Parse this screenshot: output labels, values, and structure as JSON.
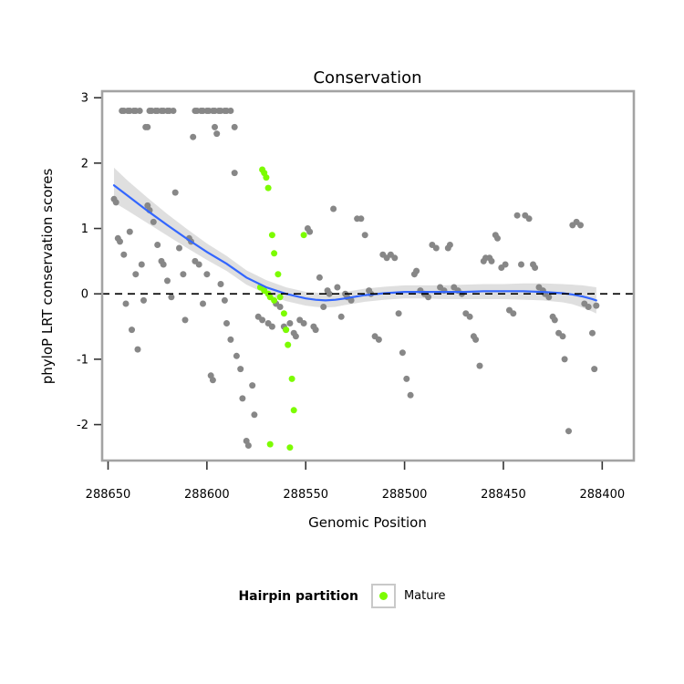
{
  "title": "Conservation",
  "x_axis": {
    "label": "Genomic Position"
  },
  "y_axis": {
    "label": "phyloP LRT conservation scores"
  },
  "legend": {
    "title": "Hairpin partition",
    "items": [
      {
        "label": "Mature",
        "color": "#7CFC00"
      }
    ]
  },
  "colors": {
    "points_other": "#878787",
    "points_mature": "#7CFC00",
    "smooth_line": "#3366FF",
    "ribbon": "#C9C9C9",
    "reference_line": "#000000",
    "panel_border": "#A3A3A3"
  },
  "chart_data": {
    "type": "scatter",
    "title": "Conservation",
    "xlabel": "Genomic Position",
    "ylabel": "phyloP LRT conservation scores",
    "x_axis_reversed": true,
    "x_ticks": [
      288650,
      288600,
      288550,
      288500,
      288450,
      288400
    ],
    "y_ticks": [
      3,
      2,
      1,
      0,
      -1,
      -2
    ],
    "xlim_display": [
      288653,
      288384
    ],
    "ylim": [
      -2.55,
      3.1
    ],
    "reference_line_y": 0,
    "grid": false,
    "legend_position": "bottom",
    "series": [
      {
        "name": "Other",
        "color": "#878787",
        "points": [
          [
            288643,
            2.8
          ],
          [
            288642,
            2.8
          ],
          [
            288640,
            2.8
          ],
          [
            288639,
            2.8
          ],
          [
            288637,
            2.8
          ],
          [
            288636,
            2.8
          ],
          [
            288634,
            2.8
          ],
          [
            288629,
            2.8
          ],
          [
            288628,
            2.8
          ],
          [
            288626,
            2.8
          ],
          [
            288625,
            2.8
          ],
          [
            288623,
            2.8
          ],
          [
            288622,
            2.8
          ],
          [
            288620,
            2.8
          ],
          [
            288619,
            2.8
          ],
          [
            288617,
            2.8
          ],
          [
            288606,
            2.8
          ],
          [
            288605,
            2.8
          ],
          [
            288603,
            2.8
          ],
          [
            288602,
            2.8
          ],
          [
            288600,
            2.8
          ],
          [
            288599,
            2.8
          ],
          [
            288597,
            2.8
          ],
          [
            288596,
            2.8
          ],
          [
            288594,
            2.8
          ],
          [
            288593,
            2.8
          ],
          [
            288591,
            2.8
          ],
          [
            288590,
            2.8
          ],
          [
            288588,
            2.8
          ],
          [
            288631,
            2.55
          ],
          [
            288630,
            2.55
          ],
          [
            288596,
            2.55
          ],
          [
            288586,
            2.55
          ],
          [
            288607,
            2.4
          ],
          [
            288595,
            2.45
          ],
          [
            288647,
            1.45
          ],
          [
            288646,
            1.4
          ],
          [
            288645,
            0.85
          ],
          [
            288644,
            0.8
          ],
          [
            288642,
            0.6
          ],
          [
            288641,
            -0.15
          ],
          [
            288639,
            0.95
          ],
          [
            288638,
            -0.55
          ],
          [
            288636,
            0.3
          ],
          [
            288635,
            -0.85
          ],
          [
            288633,
            0.45
          ],
          [
            288632,
            -0.1
          ],
          [
            288630,
            1.35
          ],
          [
            288629,
            1.28
          ],
          [
            288627,
            1.1
          ],
          [
            288625,
            0.75
          ],
          [
            288623,
            0.5
          ],
          [
            288622,
            0.45
          ],
          [
            288620,
            0.2
          ],
          [
            288618,
            -0.05
          ],
          [
            288616,
            1.55
          ],
          [
            288614,
            0.7
          ],
          [
            288612,
            0.3
          ],
          [
            288611,
            -0.4
          ],
          [
            288609,
            0.85
          ],
          [
            288608,
            0.8
          ],
          [
            288606,
            0.5
          ],
          [
            288604,
            0.45
          ],
          [
            288602,
            -0.15
          ],
          [
            288600,
            0.3
          ],
          [
            288598,
            -1.25
          ],
          [
            288597,
            -1.32
          ],
          [
            288593,
            0.15
          ],
          [
            288591,
            -0.1
          ],
          [
            288590,
            -0.45
          ],
          [
            288588,
            -0.7
          ],
          [
            288586,
            1.85
          ],
          [
            288585,
            -0.95
          ],
          [
            288583,
            -1.15
          ],
          [
            288582,
            -1.6
          ],
          [
            288580,
            -2.25
          ],
          [
            288579,
            -2.32
          ],
          [
            288577,
            -1.4
          ],
          [
            288576,
            -1.85
          ],
          [
            288574,
            -0.35
          ],
          [
            288572,
            -0.4
          ],
          [
            288569,
            -0.45
          ],
          [
            288567,
            -0.5
          ],
          [
            288565,
            -0.15
          ],
          [
            288563,
            -0.2
          ],
          [
            288561,
            -0.5
          ],
          [
            288560,
            -0.55
          ],
          [
            288558,
            -0.45
          ],
          [
            288556,
            -0.6
          ],
          [
            288555,
            -0.65
          ],
          [
            288553,
            -0.4
          ],
          [
            288551,
            -0.45
          ],
          [
            288549,
            1.0
          ],
          [
            288548,
            0.95
          ],
          [
            288546,
            -0.5
          ],
          [
            288545,
            -0.55
          ],
          [
            288543,
            0.25
          ],
          [
            288541,
            -0.2
          ],
          [
            288539,
            0.05
          ],
          [
            288538,
            0.0
          ],
          [
            288536,
            1.3
          ],
          [
            288534,
            0.1
          ],
          [
            288532,
            -0.35
          ],
          [
            288530,
            0.0
          ],
          [
            288529,
            -0.05
          ],
          [
            288527,
            -0.1
          ],
          [
            288524,
            1.15
          ],
          [
            288522,
            1.15
          ],
          [
            288520,
            0.9
          ],
          [
            288518,
            0.05
          ],
          [
            288517,
            0.0
          ],
          [
            288515,
            -0.65
          ],
          [
            288513,
            -0.7
          ],
          [
            288511,
            0.6
          ],
          [
            288509,
            0.55
          ],
          [
            288507,
            0.6
          ],
          [
            288505,
            0.55
          ],
          [
            288503,
            -0.3
          ],
          [
            288501,
            -0.9
          ],
          [
            288499,
            -1.3
          ],
          [
            288497,
            -1.55
          ],
          [
            288495,
            0.3
          ],
          [
            288494,
            0.35
          ],
          [
            288492,
            0.05
          ],
          [
            288490,
            0.0
          ],
          [
            288488,
            -0.05
          ],
          [
            288486,
            0.75
          ],
          [
            288484,
            0.7
          ],
          [
            288482,
            0.1
          ],
          [
            288480,
            0.05
          ],
          [
            288478,
            0.7
          ],
          [
            288477,
            0.75
          ],
          [
            288475,
            0.1
          ],
          [
            288473,
            0.05
          ],
          [
            288471,
            0.0
          ],
          [
            288469,
            -0.3
          ],
          [
            288467,
            -0.35
          ],
          [
            288465,
            -0.65
          ],
          [
            288464,
            -0.7
          ],
          [
            288462,
            -1.1
          ],
          [
            288460,
            0.5
          ],
          [
            288459,
            0.55
          ],
          [
            288457,
            0.55
          ],
          [
            288456,
            0.5
          ],
          [
            288454,
            0.9
          ],
          [
            288453,
            0.85
          ],
          [
            288451,
            0.4
          ],
          [
            288449,
            0.45
          ],
          [
            288447,
            -0.25
          ],
          [
            288445,
            -0.3
          ],
          [
            288443,
            1.2
          ],
          [
            288441,
            0.45
          ],
          [
            288439,
            1.2
          ],
          [
            288437,
            1.15
          ],
          [
            288435,
            0.45
          ],
          [
            288434,
            0.4
          ],
          [
            288432,
            0.1
          ],
          [
            288430,
            0.05
          ],
          [
            288429,
            0.0
          ],
          [
            288427,
            -0.05
          ],
          [
            288425,
            -0.35
          ],
          [
            288424,
            -0.4
          ],
          [
            288422,
            -0.6
          ],
          [
            288420,
            -0.65
          ],
          [
            288419,
            -1.0
          ],
          [
            288417,
            -2.1
          ],
          [
            288415,
            1.05
          ],
          [
            288413,
            1.1
          ],
          [
            288411,
            1.05
          ],
          [
            288409,
            -0.15
          ],
          [
            288407,
            -0.2
          ],
          [
            288405,
            -0.6
          ],
          [
            288404,
            -1.15
          ],
          [
            288403,
            -0.18
          ]
        ]
      },
      {
        "name": "Mature",
        "color": "#7CFC00",
        "points": [
          [
            288572,
            1.9
          ],
          [
            288571,
            1.85
          ],
          [
            288570,
            1.78
          ],
          [
            288569,
            1.62
          ],
          [
            288567,
            0.9
          ],
          [
            288566,
            0.62
          ],
          [
            288564,
            0.3
          ],
          [
            288573,
            0.1
          ],
          [
            288571,
            0.05
          ],
          [
            288569,
            0.0
          ],
          [
            288568,
            -0.05
          ],
          [
            288566,
            -0.1
          ],
          [
            288563,
            -0.05
          ],
          [
            288561,
            -0.3
          ],
          [
            288560,
            -0.55
          ],
          [
            288559,
            -0.78
          ],
          [
            288557,
            -1.3
          ],
          [
            288556,
            -1.78
          ],
          [
            288568,
            -2.3
          ],
          [
            288558,
            -2.35
          ],
          [
            288551,
            0.9
          ]
        ]
      }
    ],
    "smooth": {
      "name": "loess fit with confidence band",
      "line_color": "#3366FF",
      "ribbon_color": "#C9C9C9",
      "band": [
        [
          288647,
          1.66,
          1.4,
          1.93
        ],
        [
          288640,
          1.5,
          1.27,
          1.73
        ],
        [
          288630,
          1.27,
          1.08,
          1.47
        ],
        [
          288620,
          1.05,
          0.89,
          1.22
        ],
        [
          288610,
          0.84,
          0.7,
          0.99
        ],
        [
          288600,
          0.64,
          0.52,
          0.77
        ],
        [
          288590,
          0.46,
          0.35,
          0.58
        ],
        [
          288580,
          0.25,
          0.14,
          0.36
        ],
        [
          288570,
          0.1,
          0.0,
          0.21
        ],
        [
          288560,
          0.0,
          -0.11,
          0.1
        ],
        [
          288550,
          -0.07,
          -0.18,
          0.03
        ],
        [
          288545,
          -0.09,
          -0.2,
          0.02
        ],
        [
          288540,
          -0.1,
          -0.21,
          0.0
        ],
        [
          288535,
          -0.09,
          -0.2,
          0.01
        ],
        [
          288530,
          -0.07,
          -0.17,
          0.03
        ],
        [
          288520,
          -0.02,
          -0.12,
          0.08
        ],
        [
          288510,
          0.01,
          -0.09,
          0.11
        ],
        [
          288500,
          0.03,
          -0.07,
          0.13
        ],
        [
          288490,
          0.03,
          -0.07,
          0.13
        ],
        [
          288480,
          0.03,
          -0.08,
          0.13
        ],
        [
          288470,
          0.03,
          -0.08,
          0.14
        ],
        [
          288460,
          0.04,
          -0.08,
          0.15
        ],
        [
          288450,
          0.04,
          -0.08,
          0.15
        ],
        [
          288440,
          0.04,
          -0.09,
          0.16
        ],
        [
          288430,
          0.03,
          -0.1,
          0.16
        ],
        [
          288420,
          0.01,
          -0.13,
          0.15
        ],
        [
          288415,
          -0.01,
          -0.16,
          0.14
        ],
        [
          288410,
          -0.04,
          -0.21,
          0.13
        ],
        [
          288405,
          -0.08,
          -0.27,
          0.11
        ],
        [
          288403,
          -0.1,
          -0.3,
          0.1
        ]
      ]
    }
  }
}
